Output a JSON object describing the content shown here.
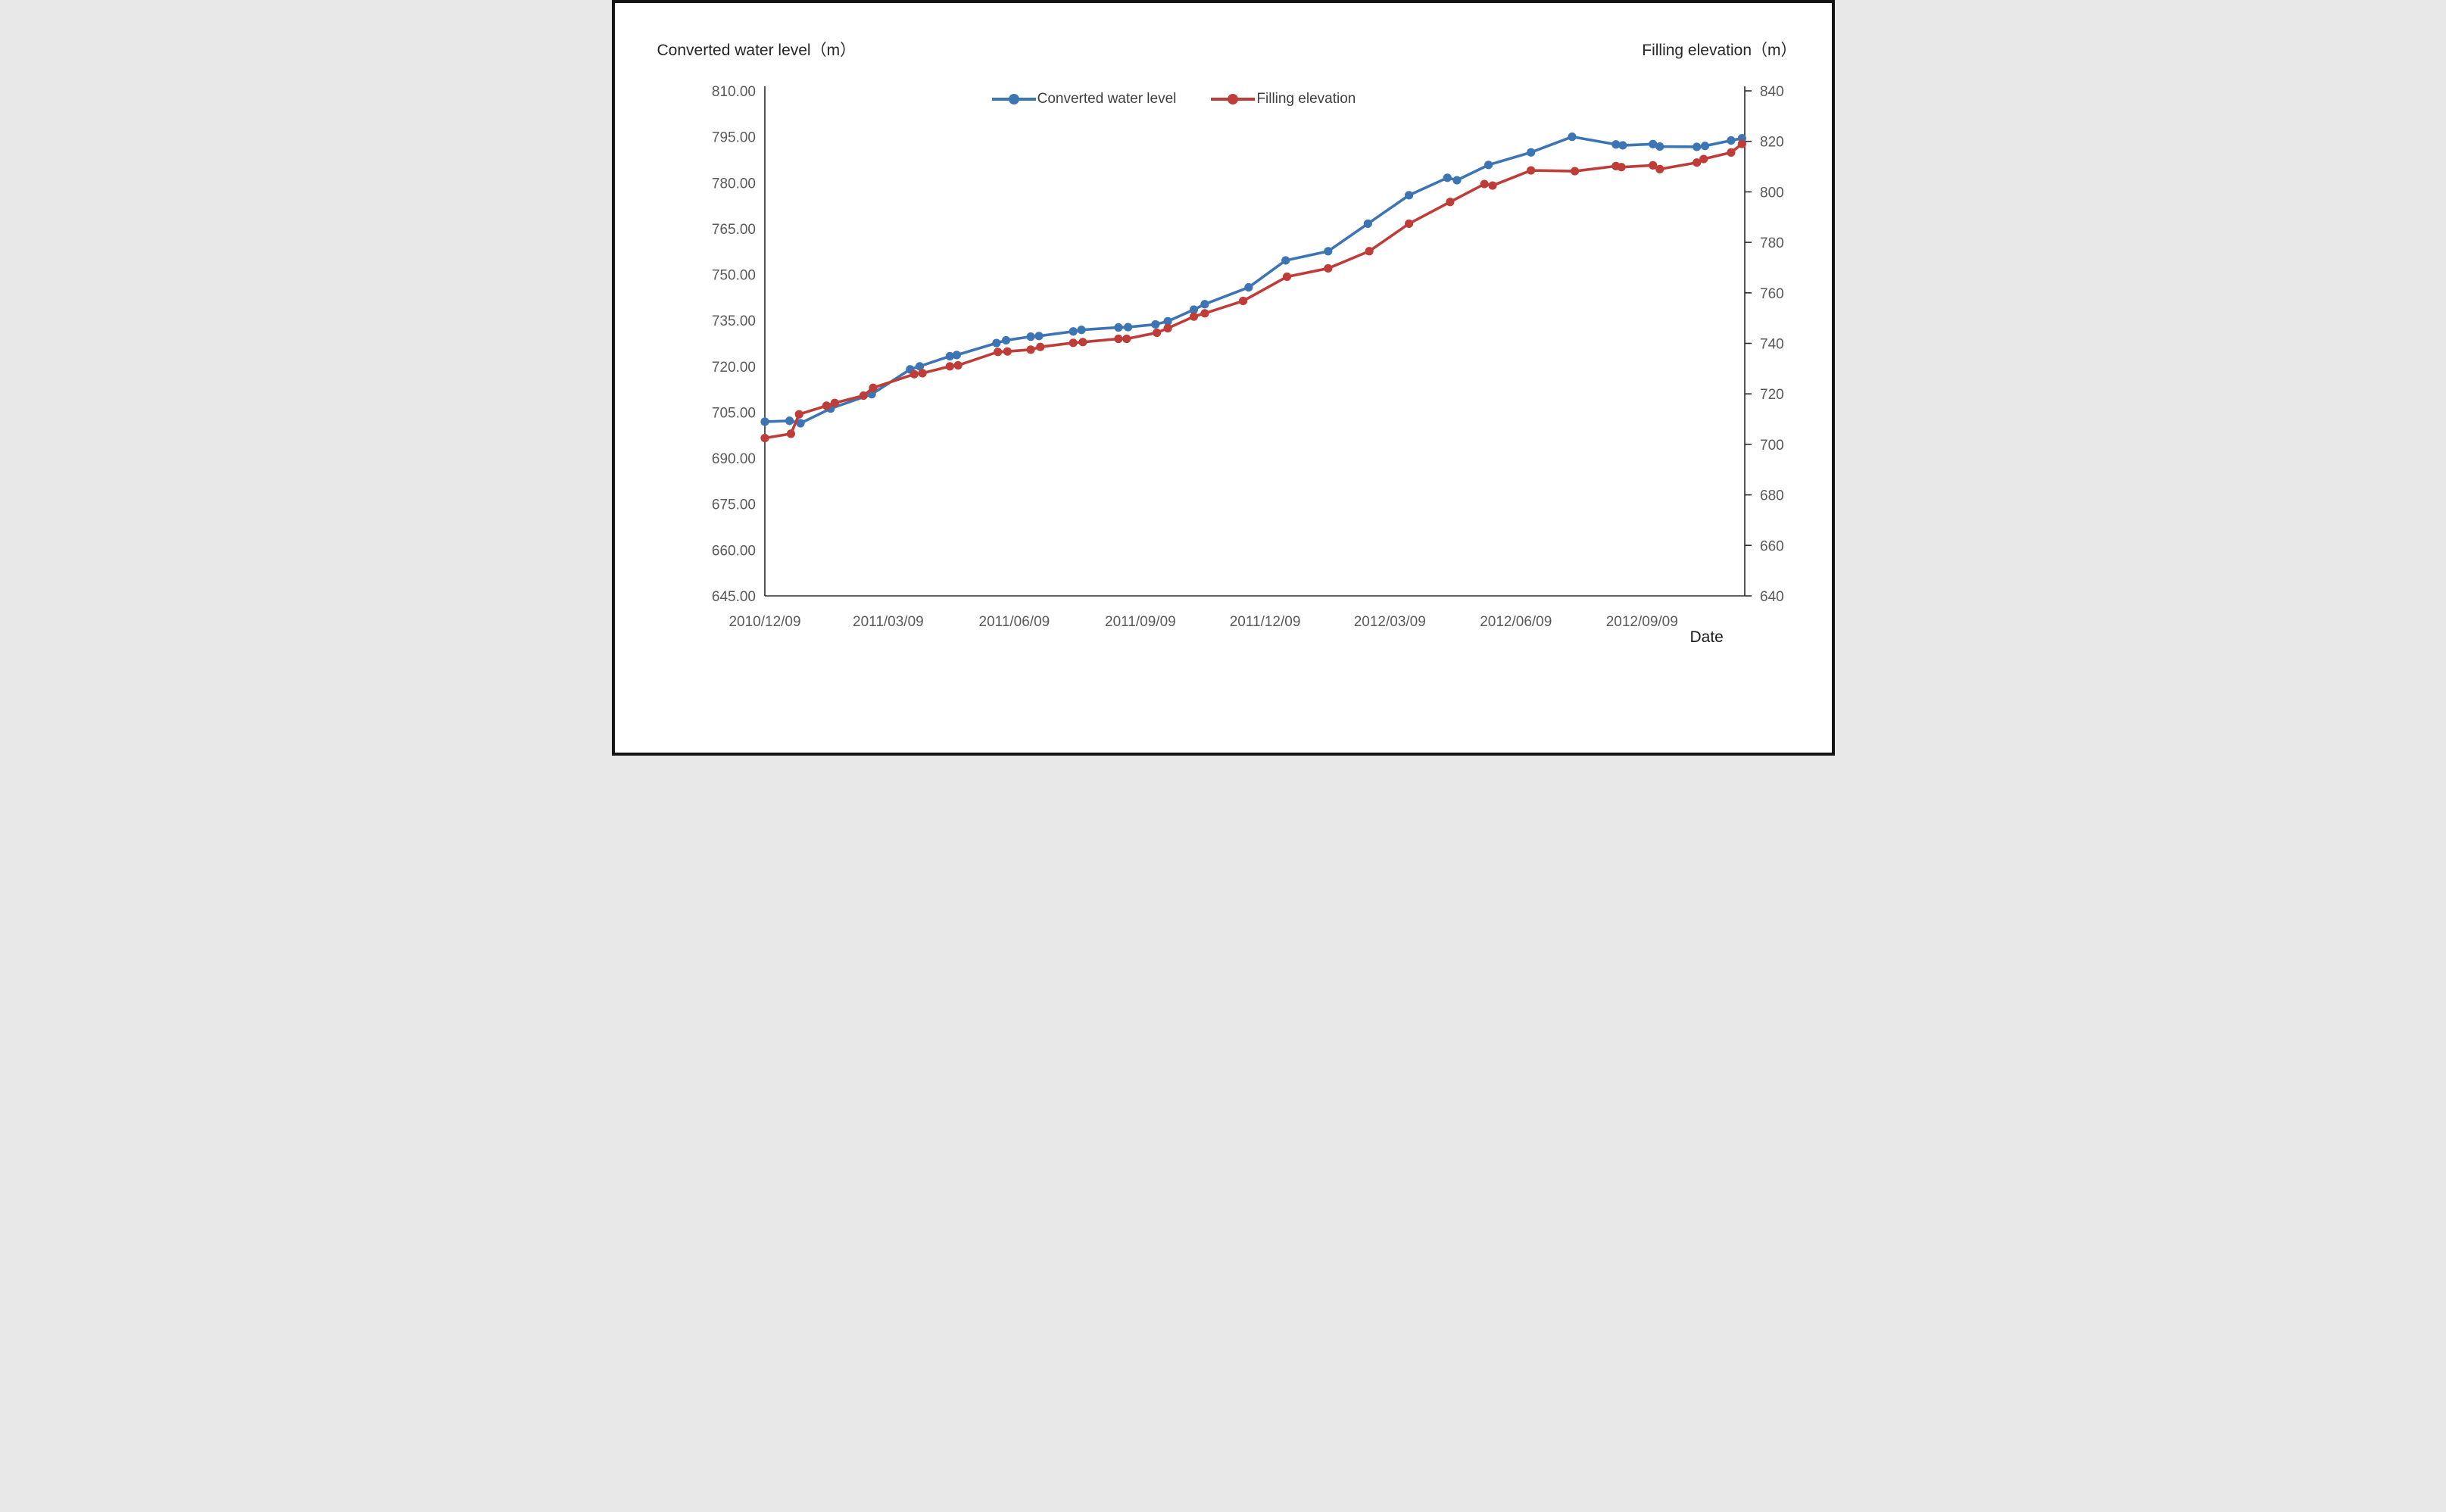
{
  "chart": {
    "left_axis_title": "Converted water level（m）",
    "right_axis_title": "Filling elevation（m）",
    "x_axis_title": "Date",
    "legend": [
      {
        "label": "Converted water level",
        "color": "#3C74B4"
      },
      {
        "label": "Filling elevation",
        "color": "#BE3D38"
      }
    ]
  },
  "chart_data": {
    "type": "line",
    "title": "",
    "xlabel": "Date",
    "left_ylabel": "Converted water level（m）",
    "right_ylabel": "Filling elevation（m）",
    "grid": false,
    "legend_position": "top-center",
    "left_axis": {
      "min": 645,
      "max": 810,
      "tick_step": 15,
      "tick_labels": [
        "810.00",
        "795.00",
        "780.00",
        "765.00",
        "750.00",
        "735.00",
        "720.00",
        "705.00",
        "690.00",
        "675.00",
        "660.00",
        "645.00"
      ]
    },
    "right_axis": {
      "min": 640,
      "max": 840,
      "tick_step": 20,
      "tick_labels": [
        "840",
        "820",
        "800",
        "780",
        "760",
        "740",
        "720",
        "700",
        "680",
        "660",
        "640"
      ]
    },
    "x_axis": {
      "start": "2010/12/09",
      "end": "2012/11/23",
      "tick_labels": [
        "2010/12/09",
        "2011/03/09",
        "2011/06/09",
        "2011/09/09",
        "2011/12/09",
        "2012/03/09",
        "2012/06/09",
        "2012/09/09"
      ]
    },
    "series": [
      {
        "name": "Converted water level",
        "color": "#3C74B4",
        "axis": "left",
        "points": [
          [
            "2010/12/09",
            701.9
          ],
          [
            "2010/12/27",
            702.2
          ],
          [
            "2011/01/04",
            701.4
          ],
          [
            "2011/01/26",
            706.2
          ],
          [
            "2011/02/25",
            710.9
          ],
          [
            "2011/03/25",
            719.0
          ],
          [
            "2011/04/01",
            720.0
          ],
          [
            "2011/04/23",
            723.3
          ],
          [
            "2011/04/28",
            723.7
          ],
          [
            "2011/05/27",
            727.6
          ],
          [
            "2011/06/03",
            728.5
          ],
          [
            "2011/06/21",
            729.7
          ],
          [
            "2011/06/27",
            729.9
          ],
          [
            "2011/07/22",
            731.4
          ],
          [
            "2011/07/28",
            731.9
          ],
          [
            "2011/08/24",
            732.7
          ],
          [
            "2011/08/31",
            732.8
          ],
          [
            "2011/09/20",
            733.7
          ],
          [
            "2011/09/29",
            734.7
          ],
          [
            "2011/10/18",
            738.5
          ],
          [
            "2011/10/26",
            740.3
          ],
          [
            "2011/11/27",
            745.8
          ],
          [
            "2011/12/24",
            754.6
          ],
          [
            "2012/01/24",
            757.6
          ],
          [
            "2012/02/22",
            766.6
          ],
          [
            "2012/03/23",
            775.9
          ],
          [
            "2012/04/20",
            781.6
          ],
          [
            "2012/04/27",
            780.8
          ],
          [
            "2012/05/20",
            785.8
          ],
          [
            "2012/06/20",
            789.9
          ],
          [
            "2012/07/20",
            795.0
          ],
          [
            "2012/08/21",
            792.5
          ],
          [
            "2012/08/26",
            792.2
          ],
          [
            "2012/09/17",
            792.6
          ],
          [
            "2012/09/22",
            791.8
          ],
          [
            "2012/10/19",
            791.7
          ],
          [
            "2012/10/25",
            792.0
          ],
          [
            "2012/11/13",
            793.8
          ],
          [
            "2012/11/21",
            794.5
          ]
        ]
      },
      {
        "name": "Filling elevation",
        "color": "#BE3D38",
        "axis": "right",
        "points": [
          [
            "2010/12/09",
            702.5
          ],
          [
            "2010/12/28",
            704.2
          ],
          [
            "2011/01/03",
            711.9
          ],
          [
            "2011/01/23",
            715.3
          ],
          [
            "2011/01/29",
            716.4
          ],
          [
            "2011/02/19",
            719.3
          ],
          [
            "2011/02/26",
            722.4
          ],
          [
            "2011/03/28",
            727.8
          ],
          [
            "2011/04/03",
            728.2
          ],
          [
            "2011/04/23",
            730.9
          ],
          [
            "2011/04/29",
            731.3
          ],
          [
            "2011/05/28",
            736.6
          ],
          [
            "2011/06/04",
            736.8
          ],
          [
            "2011/06/21",
            737.5
          ],
          [
            "2011/06/28",
            738.6
          ],
          [
            "2011/07/22",
            740.2
          ],
          [
            "2011/07/29",
            740.5
          ],
          [
            "2011/08/24",
            741.8
          ],
          [
            "2011/08/30",
            741.8
          ],
          [
            "2011/09/21",
            744.2
          ],
          [
            "2011/09/29",
            746.0
          ],
          [
            "2011/10/18",
            750.6
          ],
          [
            "2011/10/26",
            751.9
          ],
          [
            "2011/11/23",
            756.8
          ],
          [
            "2011/12/25",
            766.4
          ],
          [
            "2012/01/24",
            769.7
          ],
          [
            "2012/02/23",
            776.5
          ],
          [
            "2012/03/23",
            787.4
          ],
          [
            "2012/04/22",
            796.0
          ],
          [
            "2012/05/17",
            803.1
          ],
          [
            "2012/05/23",
            802.5
          ],
          [
            "2012/06/20",
            808.5
          ],
          [
            "2012/07/22",
            808.2
          ],
          [
            "2012/08/21",
            810.2
          ],
          [
            "2012/08/25",
            809.8
          ],
          [
            "2012/09/17",
            810.5
          ],
          [
            "2012/09/22",
            809.0
          ],
          [
            "2012/10/19",
            811.6
          ],
          [
            "2012/10/24",
            813.0
          ],
          [
            "2012/11/13",
            815.6
          ],
          [
            "2012/11/21",
            819.0
          ]
        ]
      }
    ]
  }
}
